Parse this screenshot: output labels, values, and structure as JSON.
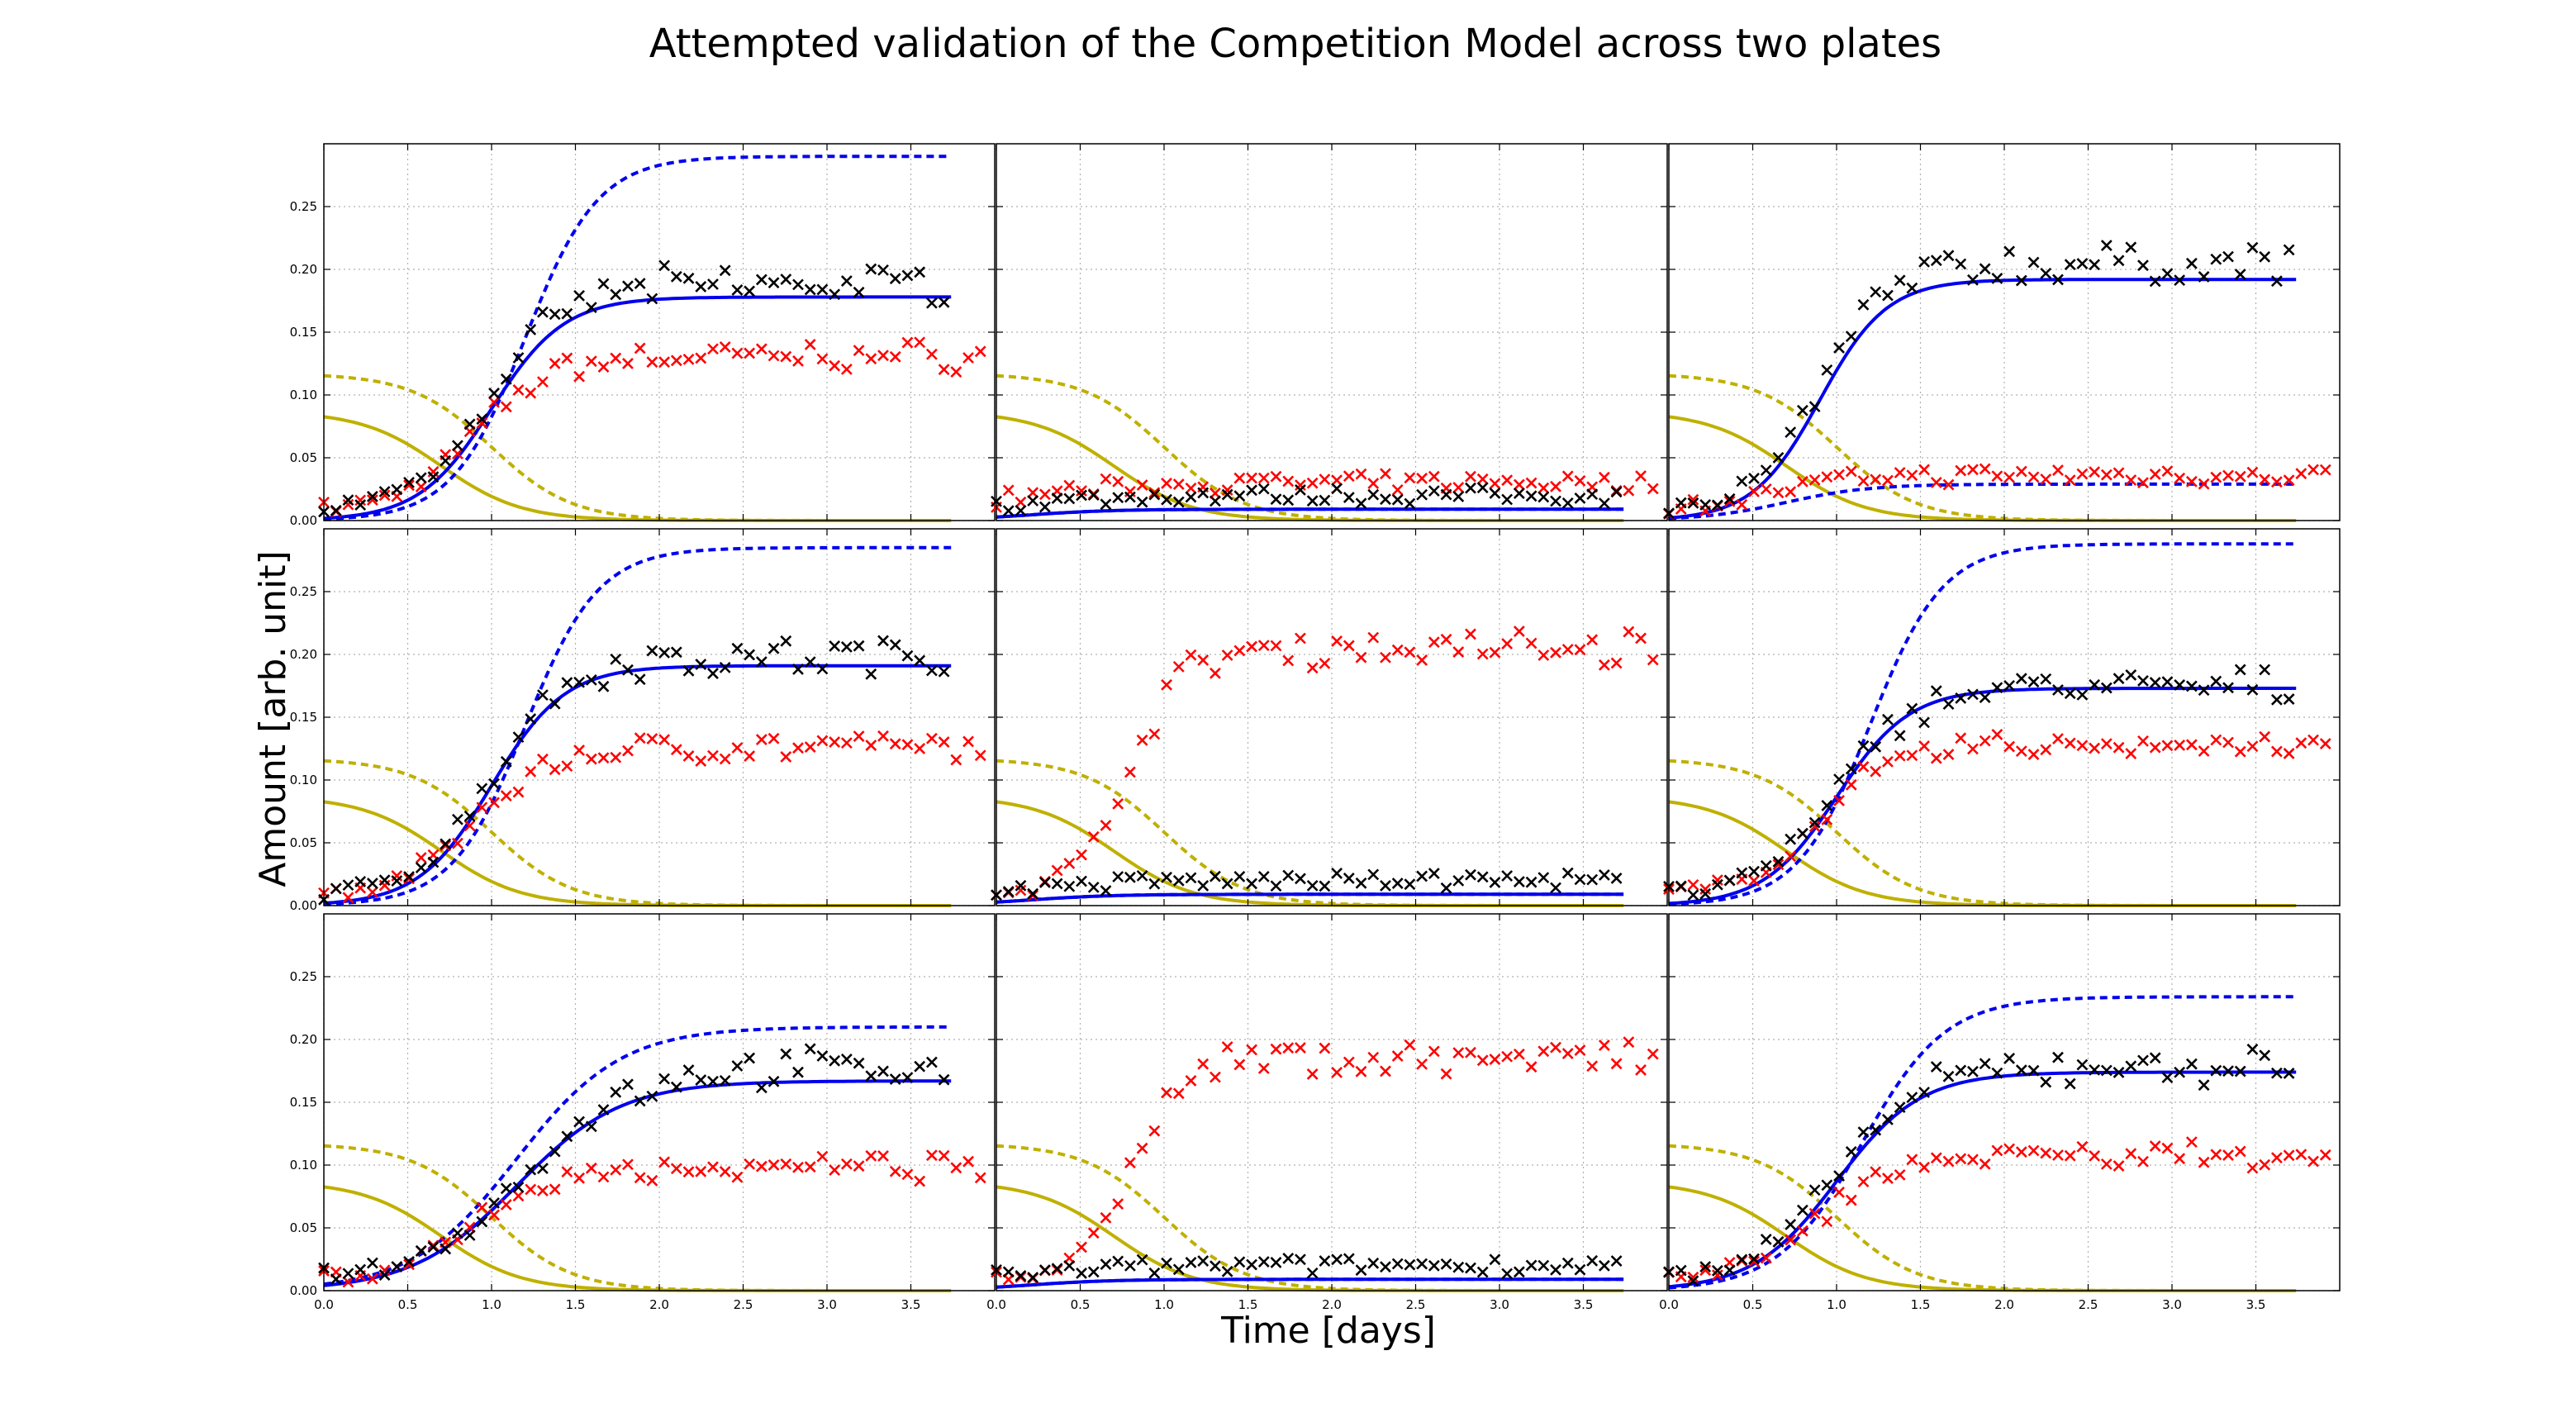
{
  "title": "Attempted validation of the Competition Model across two plates",
  "xlabel": "Time [days]",
  "ylabel": "Amount [arb. unit]",
  "colors": {
    "data_black": "#000000",
    "data_red": "#ff0000",
    "model_blue": "#0000ee",
    "model_yellow": "#bfb000",
    "grid": "#b0b0b0"
  },
  "chart_data": {
    "type": "scatter",
    "grid": true,
    "layout": "3x3 panels, shared axes",
    "xlim": [
      0,
      4.0
    ],
    "ylim": [
      0,
      0.3
    ],
    "x_tick_labels": [
      "0.0",
      "0.5",
      "1.0",
      "1.5",
      "2.0",
      "2.5",
      "3.0",
      "3.5"
    ],
    "y_tick_labels": [
      "0.00",
      "0.05",
      "0.10",
      "0.15",
      "0.20",
      "0.25"
    ],
    "panels": [
      {
        "blue_solid": {
          "K": 0.178,
          "r": 4.6,
          "t0": 1.0
        },
        "blue_dashed": {
          "K": 0.29,
          "r": 4.6,
          "t0": 1.2
        },
        "yellow_solid": {
          "A": 0.087,
          "k": 4.2,
          "t0": 0.7
        },
        "yellow_dashed": {
          "A": 0.117,
          "k": 4.2,
          "t0": 1.0
        },
        "black_points": {
          "K": 0.18,
          "r": 4.5,
          "t0": 1.0
        },
        "red_points": {
          "K": 0.123,
          "r": 4.5,
          "t0": 0.9
        }
      },
      {
        "blue_solid": {
          "K": 0.009,
          "r": 4.0,
          "t0": 0.2
        },
        "blue_dashed": {
          "K": 0.009,
          "r": 4.0,
          "t0": 0.2
        },
        "yellow_solid": {
          "A": 0.087,
          "k": 4.2,
          "t0": 0.7
        },
        "yellow_dashed": {
          "A": 0.117,
          "k": 4.2,
          "t0": 1.0
        },
        "black_points": {
          "K": 0.012,
          "r": 3.0,
          "t0": 0.2
        },
        "red_points": {
          "K": 0.022,
          "r": 3.0,
          "t0": 0.1
        }
      },
      {
        "blue_solid": {
          "K": 0.192,
          "r": 5.0,
          "t0": 0.9
        },
        "blue_dashed": {
          "K": 0.029,
          "r": 4.0,
          "t0": 0.7
        },
        "yellow_solid": {
          "A": 0.087,
          "k": 4.2,
          "t0": 0.7
        },
        "yellow_dashed": {
          "A": 0.117,
          "k": 4.2,
          "t0": 1.0
        },
        "black_points": {
          "K": 0.196,
          "r": 5.0,
          "t0": 0.9
        },
        "red_points": {
          "K": 0.028,
          "r": 4.0,
          "t0": 0.6
        }
      },
      {
        "blue_solid": {
          "K": 0.191,
          "r": 4.6,
          "t0": 1.0
        },
        "blue_dashed": {
          "K": 0.285,
          "r": 4.6,
          "t0": 1.2
        },
        "yellow_solid": {
          "A": 0.087,
          "k": 4.2,
          "t0": 0.7
        },
        "yellow_dashed": {
          "A": 0.117,
          "k": 4.2,
          "t0": 1.0
        },
        "black_points": {
          "K": 0.19,
          "r": 4.5,
          "t0": 1.0
        },
        "red_points": {
          "K": 0.118,
          "r": 4.5,
          "t0": 0.9
        }
      },
      {
        "blue_solid": {
          "K": 0.009,
          "r": 4.0,
          "t0": 0.2
        },
        "blue_dashed": {
          "K": 0.009,
          "r": 4.0,
          "t0": 0.2
        },
        "yellow_solid": {
          "A": 0.087,
          "k": 4.2,
          "t0": 0.7
        },
        "yellow_dashed": {
          "A": 0.117,
          "k": 4.2,
          "t0": 1.0
        },
        "black_points": {
          "K": 0.012,
          "r": 3.0,
          "t0": 0.2
        },
        "red_points": {
          "K": 0.197,
          "r": 6.0,
          "t0": 0.78
        }
      },
      {
        "blue_solid": {
          "K": 0.173,
          "r": 4.6,
          "t0": 1.0
        },
        "blue_dashed": {
          "K": 0.288,
          "r": 4.6,
          "t0": 1.2
        },
        "yellow_solid": {
          "A": 0.087,
          "k": 4.2,
          "t0": 0.7
        },
        "yellow_dashed": {
          "A": 0.117,
          "k": 4.2,
          "t0": 1.0
        },
        "black_points": {
          "K": 0.166,
          "r": 4.5,
          "t0": 1.0
        },
        "red_points": {
          "K": 0.12,
          "r": 4.5,
          "t0": 0.9
        }
      },
      {
        "blue_solid": {
          "K": 0.167,
          "r": 3.2,
          "t0": 1.15
        },
        "blue_dashed": {
          "K": 0.21,
          "r": 3.2,
          "t0": 1.15
        },
        "yellow_solid": {
          "A": 0.087,
          "k": 4.2,
          "t0": 0.7
        },
        "yellow_dashed": {
          "A": 0.117,
          "k": 4.2,
          "t0": 1.0
        },
        "black_points": {
          "K": 0.17,
          "r": 3.2,
          "t0": 1.2
        },
        "red_points": {
          "K": 0.09,
          "r": 4.0,
          "t0": 0.9
        }
      },
      {
        "blue_solid": {
          "K": 0.009,
          "r": 4.0,
          "t0": 0.2
        },
        "blue_dashed": {
          "K": 0.009,
          "r": 4.0,
          "t0": 0.2
        },
        "yellow_solid": {
          "A": 0.087,
          "k": 4.2,
          "t0": 0.7
        },
        "yellow_dashed": {
          "A": 0.117,
          "k": 4.2,
          "t0": 1.0
        },
        "black_points": {
          "K": 0.012,
          "r": 3.0,
          "t0": 0.2
        },
        "red_points": {
          "K": 0.177,
          "r": 6.0,
          "t0": 0.8
        }
      },
      {
        "blue_solid": {
          "K": 0.174,
          "r": 4.0,
          "t0": 1.0
        },
        "blue_dashed": {
          "K": 0.234,
          "r": 4.0,
          "t0": 1.15
        },
        "yellow_solid": {
          "A": 0.087,
          "k": 4.2,
          "t0": 0.7
        },
        "yellow_dashed": {
          "A": 0.117,
          "k": 4.2,
          "t0": 1.0
        },
        "black_points": {
          "K": 0.17,
          "r": 4.0,
          "t0": 1.0
        },
        "red_points": {
          "K": 0.1,
          "r": 4.5,
          "t0": 0.9
        }
      }
    ]
  }
}
